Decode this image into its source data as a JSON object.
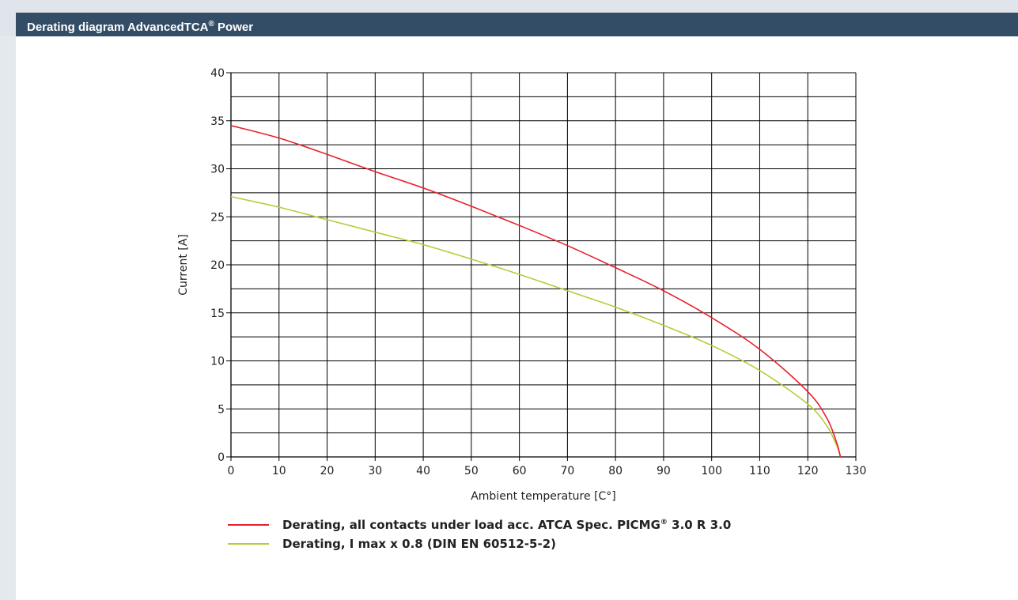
{
  "header": {
    "title": "Derating diagram AdvancedTCA",
    "title_sup": "®",
    "title_suffix": " Power"
  },
  "colors": {
    "header_bg": "#334d66",
    "series_red": "#e8202a",
    "series_green": "#b5cc3a",
    "grid": "#000000"
  },
  "chart_data": {
    "type": "line",
    "xlabel": "Ambient temperature [C°]",
    "ylabel": "Current [A]",
    "xlim": [
      0,
      130
    ],
    "ylim": [
      0,
      40
    ],
    "x_ticks": [
      0,
      10,
      20,
      30,
      40,
      50,
      60,
      70,
      80,
      90,
      100,
      110,
      120,
      130
    ],
    "y_ticks": [
      0,
      5,
      10,
      15,
      20,
      25,
      30,
      35,
      40
    ],
    "grid": true,
    "series": [
      {
        "name": "Derating, all contacts under load acc. ATCA Spec. PICMG® 3.0 R 3.0",
        "name_pre": "Derating, all contacts under load acc. ATCA Spec. PICMG",
        "name_sup": "®",
        "name_post": " 3.0 R 3.0",
        "color": "#e8202a",
        "x": [
          0,
          10,
          20,
          30,
          40,
          50,
          60,
          70,
          80,
          90,
          100,
          110,
          120,
          124,
          126,
          126.8
        ],
        "values": [
          34.5,
          33.2,
          31.5,
          29.7,
          28.0,
          26.1,
          24.1,
          22.0,
          19.7,
          17.3,
          14.5,
          11.2,
          6.8,
          4.0,
          1.5,
          0
        ]
      },
      {
        "name": "Derating, I max x 0.8 (DIN EN 60512-5-2)",
        "color": "#b5cc3a",
        "x": [
          0,
          10,
          20,
          30,
          40,
          50,
          60,
          70,
          80,
          90,
          100,
          110,
          120,
          124,
          126,
          126.8
        ],
        "values": [
          27.1,
          26.0,
          24.7,
          23.4,
          22.1,
          20.6,
          19.0,
          17.3,
          15.6,
          13.7,
          11.6,
          9.0,
          5.5,
          3.2,
          1.2,
          0
        ]
      }
    ]
  }
}
